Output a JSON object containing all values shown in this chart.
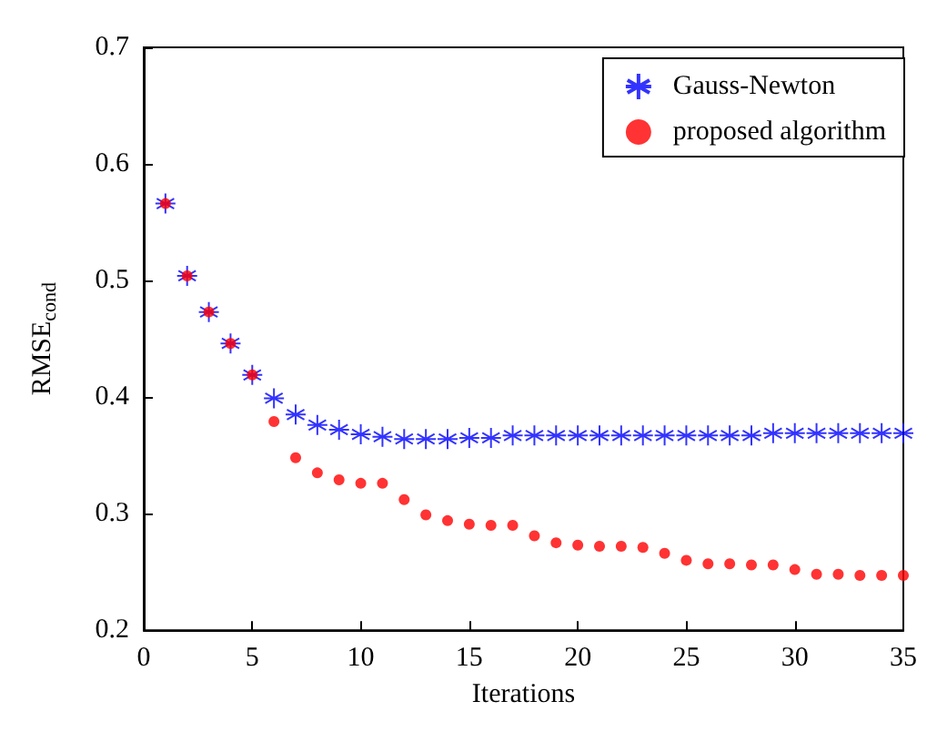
{
  "chart_data": {
    "type": "scatter",
    "xlabel": "Iterations",
    "ylabel": "RMSE$_{cond}$",
    "x": [
      1,
      2,
      3,
      4,
      5,
      6,
      7,
      8,
      9,
      10,
      11,
      12,
      13,
      14,
      15,
      16,
      17,
      18,
      19,
      20,
      21,
      22,
      23,
      24,
      25,
      26,
      27,
      28,
      29,
      30,
      31,
      32,
      33,
      34,
      35
    ],
    "series": [
      {
        "name": "Gauss-Newton",
        "color": "#0000ff",
        "marker": "cross",
        "values": [
          0.566,
          0.504,
          0.473,
          0.446,
          0.419,
          0.399,
          0.385,
          0.376,
          0.372,
          0.368,
          0.366,
          0.364,
          0.364,
          0.364,
          0.365,
          0.365,
          0.367,
          0.367,
          0.367,
          0.367,
          0.367,
          0.367,
          0.367,
          0.367,
          0.367,
          0.367,
          0.367,
          0.367,
          0.369,
          0.369,
          0.369,
          0.369,
          0.369,
          0.369,
          0.369
        ]
      },
      {
        "name": "proposed algorithm",
        "color": "#ff0000",
        "marker": "circle",
        "values": [
          0.566,
          0.504,
          0.473,
          0.446,
          0.419,
          0.379,
          0.348,
          0.335,
          0.329,
          0.326,
          0.326,
          0.312,
          0.299,
          0.294,
          0.291,
          0.29,
          0.29,
          0.281,
          0.275,
          0.273,
          0.272,
          0.272,
          0.271,
          0.266,
          0.26,
          0.257,
          0.257,
          0.256,
          0.256,
          0.252,
          0.248,
          0.248,
          0.247,
          0.247,
          0.247
        ]
      }
    ],
    "xlim": [
      0,
      35
    ],
    "xticks": [
      0,
      5,
      10,
      15,
      20,
      25,
      30,
      35
    ],
    "ylim": [
      0.2,
      0.7
    ],
    "yticks": [
      0.2,
      0.3,
      0.4,
      0.5,
      0.6,
      0.7
    ],
    "legend": "top right",
    "grid": false
  }
}
